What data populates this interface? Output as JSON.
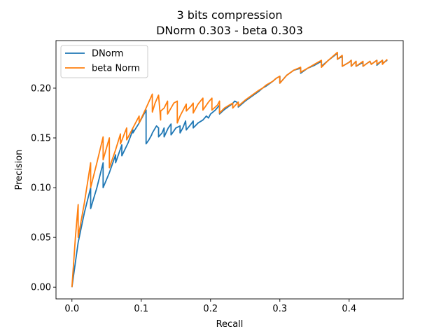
{
  "chart_data": {
    "type": "line",
    "title": "3 bits compression",
    "subtitle": "DNorm 0.303 - beta 0.303",
    "xlabel": "Recall",
    "ylabel": "Precision",
    "xlim": [
      -0.023,
      0.478
    ],
    "ylim": [
      -0.0118,
      0.2478
    ],
    "xticks": [
      "0.0",
      "0.1",
      "0.2",
      "0.3",
      "0.4"
    ],
    "xtick_values": [
      0.0,
      0.1,
      0.2,
      0.3,
      0.4
    ],
    "yticks": [
      "0.00",
      "0.05",
      "0.10",
      "0.15",
      "0.20"
    ],
    "ytick_values": [
      0.0,
      0.05,
      0.1,
      0.15,
      0.2
    ],
    "grid": false,
    "legend_position": "top-left",
    "series": [
      {
        "name": "DNorm",
        "color": "#1f77b4",
        "x": [
          0.0,
          0.009,
          0.018,
          0.027,
          0.027,
          0.036,
          0.045,
          0.045,
          0.054,
          0.063,
          0.063,
          0.072,
          0.072,
          0.081,
          0.088,
          0.088,
          0.097,
          0.107,
          0.107,
          0.111,
          0.115,
          0.116,
          0.122,
          0.125,
          0.125,
          0.13,
          0.133,
          0.133,
          0.139,
          0.143,
          0.143,
          0.15,
          0.156,
          0.156,
          0.16,
          0.164,
          0.165,
          0.172,
          0.175,
          0.175,
          0.182,
          0.189,
          0.194,
          0.197,
          0.2,
          0.207,
          0.213,
          0.213,
          0.219,
          0.225,
          0.231,
          0.235,
          0.24,
          0.24,
          0.25,
          0.26,
          0.27,
          0.275,
          0.28,
          0.29,
          0.295,
          0.3,
          0.3,
          0.31,
          0.32,
          0.33,
          0.33,
          0.34,
          0.35,
          0.36,
          0.36,
          0.37,
          0.383,
          0.383,
          0.39,
          0.39,
          0.4,
          0.403,
          0.403,
          0.41,
          0.41,
          0.42,
          0.42,
          0.43,
          0.432,
          0.44,
          0.44,
          0.448,
          0.448,
          0.455
        ],
        "y": [
          0.0,
          0.045,
          0.075,
          0.1,
          0.079,
          0.1,
          0.125,
          0.1,
          0.115,
          0.133,
          0.125,
          0.143,
          0.132,
          0.145,
          0.158,
          0.155,
          0.165,
          0.178,
          0.144,
          0.148,
          0.153,
          0.155,
          0.162,
          0.16,
          0.151,
          0.155,
          0.16,
          0.151,
          0.16,
          0.164,
          0.153,
          0.16,
          0.162,
          0.155,
          0.16,
          0.167,
          0.158,
          0.164,
          0.167,
          0.16,
          0.165,
          0.168,
          0.172,
          0.17,
          0.174,
          0.178,
          0.183,
          0.174,
          0.178,
          0.181,
          0.184,
          0.187,
          0.185,
          0.181,
          0.187,
          0.192,
          0.197,
          0.2,
          0.202,
          0.207,
          0.21,
          0.212,
          0.205,
          0.213,
          0.218,
          0.22,
          0.215,
          0.22,
          0.223,
          0.227,
          0.222,
          0.228,
          0.235,
          0.229,
          0.232,
          0.222,
          0.226,
          0.228,
          0.222,
          0.227,
          0.222,
          0.226,
          0.222,
          0.227,
          0.224,
          0.228,
          0.223,
          0.228,
          0.225,
          0.228
        ]
      },
      {
        "name": "beta Norm",
        "color": "#ff7f0e",
        "x": [
          0.0,
          0.005,
          0.009,
          0.009,
          0.018,
          0.027,
          0.027,
          0.036,
          0.045,
          0.045,
          0.054,
          0.054,
          0.063,
          0.07,
          0.07,
          0.079,
          0.079,
          0.088,
          0.097,
          0.097,
          0.107,
          0.116,
          0.116,
          0.12,
          0.125,
          0.128,
          0.128,
          0.133,
          0.138,
          0.138,
          0.147,
          0.152,
          0.152,
          0.156,
          0.165,
          0.165,
          0.172,
          0.175,
          0.175,
          0.182,
          0.189,
          0.189,
          0.197,
          0.202,
          0.202,
          0.21,
          0.213,
          0.213,
          0.22,
          0.227,
          0.232,
          0.232,
          0.24,
          0.24,
          0.25,
          0.26,
          0.27,
          0.275,
          0.28,
          0.29,
          0.295,
          0.3,
          0.3,
          0.31,
          0.32,
          0.33,
          0.33,
          0.34,
          0.35,
          0.36,
          0.36,
          0.37,
          0.383,
          0.383,
          0.39,
          0.39,
          0.4,
          0.403,
          0.403,
          0.41,
          0.41,
          0.42,
          0.42,
          0.43,
          0.432,
          0.44,
          0.44,
          0.448,
          0.448,
          0.455
        ],
        "y": [
          0.0,
          0.05,
          0.083,
          0.05,
          0.085,
          0.125,
          0.1,
          0.125,
          0.151,
          0.128,
          0.15,
          0.12,
          0.138,
          0.154,
          0.144,
          0.16,
          0.148,
          0.16,
          0.172,
          0.165,
          0.18,
          0.194,
          0.176,
          0.185,
          0.193,
          0.168,
          0.177,
          0.18,
          0.187,
          0.174,
          0.185,
          0.187,
          0.165,
          0.172,
          0.184,
          0.177,
          0.182,
          0.185,
          0.175,
          0.184,
          0.19,
          0.178,
          0.186,
          0.19,
          0.178,
          0.183,
          0.187,
          0.175,
          0.18,
          0.183,
          0.185,
          0.18,
          0.186,
          0.182,
          0.188,
          0.193,
          0.198,
          0.2,
          0.203,
          0.207,
          0.21,
          0.212,
          0.205,
          0.213,
          0.218,
          0.221,
          0.216,
          0.22,
          0.224,
          0.228,
          0.221,
          0.228,
          0.236,
          0.229,
          0.233,
          0.222,
          0.226,
          0.228,
          0.222,
          0.227,
          0.222,
          0.227,
          0.222,
          0.227,
          0.224,
          0.228,
          0.224,
          0.228,
          0.224,
          0.229
        ]
      }
    ]
  }
}
